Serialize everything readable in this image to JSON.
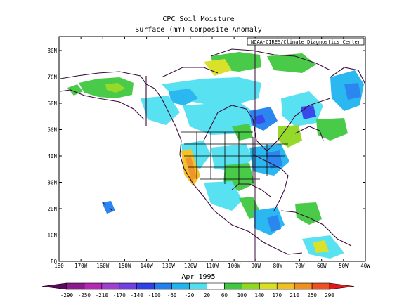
{
  "title": "CPC Soil Moisture",
  "subtitle": "Surface  (mm) Composite Anomaly",
  "credit": "NOAA-CIRES/Climate Diagnostics Center",
  "date_label": "Apr 1995",
  "lat_labels": [
    "80N",
    "70N",
    "60N",
    "50N",
    "40N",
    "30N",
    "20N",
    "10N",
    "EQ"
  ],
  "lon_labels": [
    "180",
    "170W",
    "160W",
    "150W",
    "140W",
    "130W",
    "120W",
    "110W",
    "100W",
    "90W",
    "80W",
    "70W",
    "60W",
    "50W",
    "40W"
  ],
  "colorbar": {
    "labels": [
      "-290",
      "-250",
      "-210",
      "-170",
      "-140",
      "-100",
      "-60",
      "-20",
      "20",
      "60",
      "100",
      "140",
      "170",
      "210",
      "250",
      "290"
    ],
    "colors": [
      "#5a0a5a",
      "#8c1a8c",
      "#b428b4",
      "#a040d0",
      "#7040e0",
      "#3040e8",
      "#2080f0",
      "#20b4f0",
      "#50e0f0",
      "#ffffff",
      "#40c840",
      "#90d820",
      "#d8e020",
      "#f0c020",
      "#f09020",
      "#f05020",
      "#e01818"
    ]
  }
}
